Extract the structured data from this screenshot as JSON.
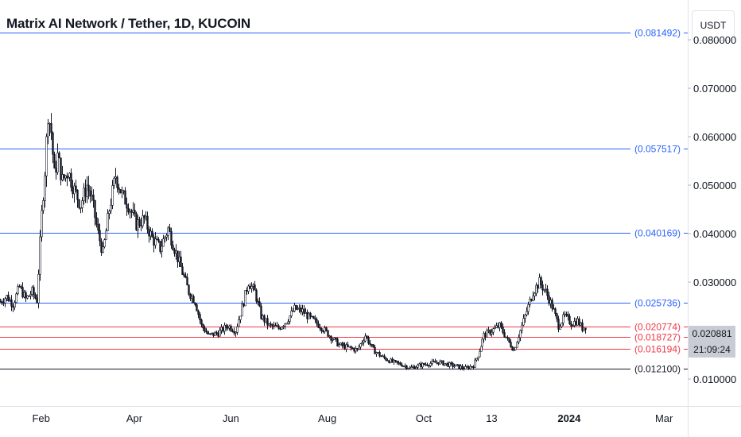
{
  "header": {
    "title": "Matrix AI Network / Tether, 1D, KUCOIN",
    "currency": "USDT"
  },
  "price_tag": {
    "last_price": "0.020881",
    "countdown": "21:09:24"
  },
  "colors": {
    "blue_line": "#2962ff",
    "red_line": "#f23645",
    "black_line": "#131722",
    "candle": "#131722",
    "axis_text": "#131722",
    "tag_bg": "#c9ccd4"
  },
  "chart_data": {
    "type": "candlestick",
    "title": "Matrix AI Network / Tether, 1D, KUCOIN",
    "x_tick_labels": [
      "Feb",
      "Apr",
      "Jun",
      "Aug",
      "Oct",
      "13",
      "2024",
      "Mar"
    ],
    "y_tick_labels": [
      "0.080000",
      "0.070000",
      "0.060000",
      "0.050000",
      "0.040000",
      "0.030000",
      "0.010000"
    ],
    "y_ticks": [
      0.08,
      0.07,
      0.06,
      0.05,
      0.04,
      0.03,
      0.01
    ],
    "ylim": [
      0.0046,
      0.0882
    ],
    "date_range": [
      "2023-01-06",
      "2024-03-16"
    ],
    "grid": false,
    "levels": [
      {
        "value": 0.081492,
        "label": "(0.081492)",
        "color": "blue"
      },
      {
        "value": 0.057517,
        "label": "(0.057517)",
        "color": "blue"
      },
      {
        "value": 0.040169,
        "label": "(0.040169)",
        "color": "blue"
      },
      {
        "value": 0.025736,
        "label": "(0.025736)",
        "color": "blue"
      },
      {
        "value": 0.020774,
        "label": "(0.020774)",
        "color": "red"
      },
      {
        "value": 0.018727,
        "label": "(0.018727)",
        "color": "red"
      },
      {
        "value": 0.016194,
        "label": "(0.016194)",
        "color": "red"
      },
      {
        "value": 0.0121,
        "label": "(0.012100)",
        "color": "black"
      }
    ],
    "price_path": [
      [
        "2023-01-06",
        0.026
      ],
      [
        "2023-01-10",
        0.027
      ],
      [
        "2023-01-14",
        0.0255
      ],
      [
        "2023-01-18",
        0.029
      ],
      [
        "2023-01-22",
        0.0265
      ],
      [
        "2023-01-26",
        0.028
      ],
      [
        "2023-01-29",
        0.0262
      ],
      [
        "2023-02-01",
        0.044
      ],
      [
        "2023-02-03",
        0.053
      ],
      [
        "2023-02-05",
        0.065
      ],
      [
        "2023-02-07",
        0.061
      ],
      [
        "2023-02-09",
        0.052
      ],
      [
        "2023-02-11",
        0.056
      ],
      [
        "2023-02-14",
        0.051
      ],
      [
        "2023-02-18",
        0.053
      ],
      [
        "2023-02-22",
        0.049
      ],
      [
        "2023-02-26",
        0.046
      ],
      [
        "2023-03-02",
        0.05
      ],
      [
        "2023-03-05",
        0.047
      ],
      [
        "2023-03-09",
        0.04
      ],
      [
        "2023-03-12",
        0.036
      ],
      [
        "2023-03-16",
        0.045
      ],
      [
        "2023-03-20",
        0.052
      ],
      [
        "2023-03-24",
        0.048
      ],
      [
        "2023-03-28",
        0.046
      ],
      [
        "2023-04-02",
        0.042
      ],
      [
        "2023-04-07",
        0.043
      ],
      [
        "2023-04-12",
        0.039
      ],
      [
        "2023-04-17",
        0.037
      ],
      [
        "2023-04-22",
        0.041
      ],
      [
        "2023-04-26",
        0.037
      ],
      [
        "2023-05-01",
        0.032
      ],
      [
        "2023-05-05",
        0.028
      ],
      [
        "2023-05-09",
        0.026
      ],
      [
        "2023-05-13",
        0.021
      ],
      [
        "2023-05-18",
        0.019
      ],
      [
        "2023-05-24",
        0.0195
      ],
      [
        "2023-05-30",
        0.021
      ],
      [
        "2023-06-04",
        0.02
      ],
      [
        "2023-06-09",
        0.026
      ],
      [
        "2023-06-12",
        0.03
      ],
      [
        "2023-06-16",
        0.028
      ],
      [
        "2023-06-20",
        0.023
      ],
      [
        "2023-06-25",
        0.021
      ],
      [
        "2023-07-01",
        0.0205
      ],
      [
        "2023-07-06",
        0.022
      ],
      [
        "2023-07-11",
        0.0245
      ],
      [
        "2023-07-16",
        0.024
      ],
      [
        "2023-07-21",
        0.0225
      ],
      [
        "2023-07-27",
        0.021
      ],
      [
        "2023-08-02",
        0.019
      ],
      [
        "2023-08-08",
        0.017
      ],
      [
        "2023-08-14",
        0.0165
      ],
      [
        "2023-08-20",
        0.016
      ],
      [
        "2023-08-25",
        0.019
      ],
      [
        "2023-08-30",
        0.016
      ],
      [
        "2023-09-05",
        0.0145
      ],
      [
        "2023-09-11",
        0.0135
      ],
      [
        "2023-09-17",
        0.013
      ],
      [
        "2023-09-22",
        0.0123
      ],
      [
        "2023-09-28",
        0.0128
      ],
      [
        "2023-10-04",
        0.0132
      ],
      [
        "2023-10-10",
        0.0135
      ],
      [
        "2023-10-16",
        0.013
      ],
      [
        "2023-10-22",
        0.0126
      ],
      [
        "2023-10-27",
        0.0122
      ],
      [
        "2023-11-01",
        0.0128
      ],
      [
        "2023-11-04",
        0.015
      ],
      [
        "2023-11-08",
        0.019
      ],
      [
        "2023-11-13",
        0.02
      ],
      [
        "2023-11-18",
        0.021
      ],
      [
        "2023-11-23",
        0.018
      ],
      [
        "2023-11-27",
        0.016
      ],
      [
        "2023-12-01",
        0.02
      ],
      [
        "2023-12-05",
        0.024
      ],
      [
        "2023-12-09",
        0.028
      ],
      [
        "2023-12-13",
        0.03
      ],
      [
        "2023-12-17",
        0.028
      ],
      [
        "2023-12-21",
        0.025
      ],
      [
        "2023-12-25",
        0.021
      ],
      [
        "2023-12-29",
        0.023
      ],
      [
        "2024-01-02",
        0.0215
      ],
      [
        "2024-01-06",
        0.022
      ],
      [
        "2024-01-09",
        0.0205
      ],
      [
        "2024-01-11",
        0.0209
      ]
    ]
  }
}
